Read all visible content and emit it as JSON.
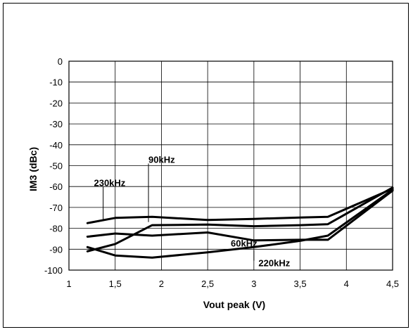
{
  "chart_data": {
    "type": "line",
    "title": "",
    "xlabel": "Vout peak (V)",
    "ylabel": "IM3  (dBc)",
    "xlim": [
      1,
      4.5
    ],
    "ylim": [
      -100,
      0
    ],
    "grid": true,
    "x_ticks": [
      1,
      1.5,
      2,
      2.5,
      3,
      3.5,
      4,
      4.5
    ],
    "x_tick_labels": [
      "1",
      "1,5",
      "2",
      "2,5",
      "3",
      "3,5",
      "4",
      "4,5"
    ],
    "y_ticks": [
      0,
      -10,
      -20,
      -30,
      -40,
      -50,
      -60,
      -70,
      -80,
      -90,
      -100
    ],
    "y_tick_labels": [
      "0",
      "-10",
      "-20",
      "-30",
      "-40",
      "-50",
      "-60",
      "-70",
      "-80",
      "-90",
      "-100"
    ],
    "series": [
      {
        "name": "230kHz",
        "x": [
          1.2,
          1.5,
          1.9,
          2.5,
          3.0,
          3.5,
          3.8,
          4.5
        ],
        "y": [
          -77.5,
          -75,
          -74.5,
          -76,
          -75.5,
          -74.8,
          -74.5,
          -61
        ]
      },
      {
        "name": "90kHz",
        "x": [
          1.2,
          1.5,
          1.9,
          2.5,
          3.0,
          3.5,
          3.8,
          4.5
        ],
        "y": [
          -91,
          -87.5,
          -78.5,
          -78.2,
          -79,
          -78.5,
          -78,
          -60.5
        ]
      },
      {
        "name": "60kHz",
        "x": [
          1.2,
          1.5,
          1.9,
          2.5,
          3.0,
          3.5,
          3.8,
          4.5
        ],
        "y": [
          -84,
          -82.5,
          -83.5,
          -82,
          -85.8,
          -85.5,
          -85.5,
          -62
        ]
      },
      {
        "name": "220kHz",
        "x": [
          1.2,
          1.5,
          1.9,
          2.5,
          3.0,
          3.5,
          3.8,
          4.5
        ],
        "y": [
          -89,
          -93,
          -94,
          -91.5,
          -89,
          -86,
          -83.5,
          -61.5
        ]
      }
    ],
    "annotations": [
      {
        "text": "230kHz",
        "series": "230kHz",
        "x": 1.27,
        "y": -58
      },
      {
        "text": "90kHz",
        "series": "90kHz",
        "x": 1.86,
        "y": -47
      },
      {
        "text": "60kHz",
        "series": "60kHz",
        "x": 2.75,
        "y": -87
      },
      {
        "text": "220kHz",
        "series": "220kHz",
        "x": 3.05,
        "y": -96.5
      }
    ]
  }
}
